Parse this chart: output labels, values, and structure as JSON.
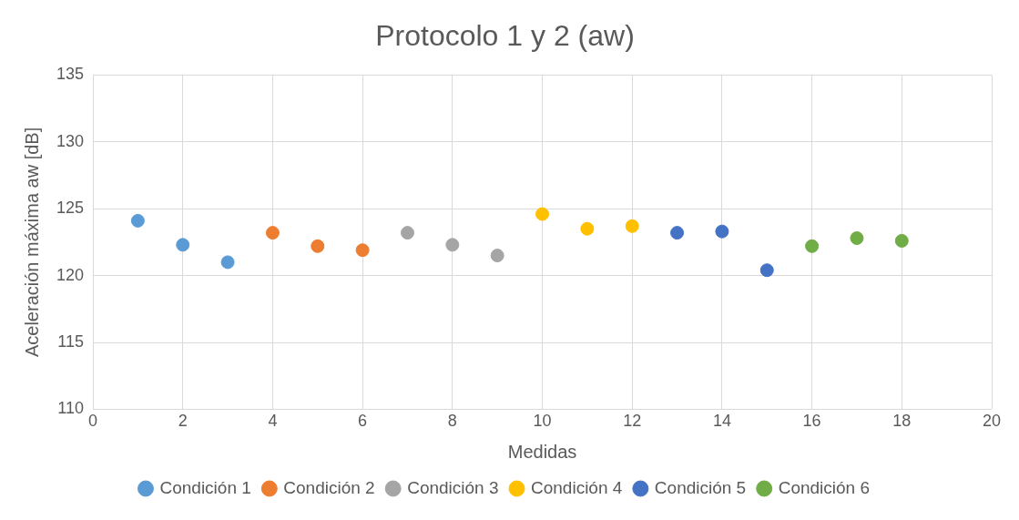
{
  "chart_data": {
    "type": "scatter",
    "title": "Protocolo 1 y 2 (aw)",
    "xlabel": "Medidas",
    "ylabel": "Aceleración máxima aw [dB]",
    "xlim": [
      0,
      20
    ],
    "xticks": [
      0,
      2,
      4,
      6,
      8,
      10,
      12,
      14,
      16,
      18,
      20
    ],
    "ylim": [
      110,
      135
    ],
    "yticks": [
      110,
      115,
      120,
      125,
      130,
      135
    ],
    "grid": true,
    "legend": "bottom",
    "marker": "circle",
    "series": [
      {
        "name": "Condición 1",
        "color": "#5b9bd5",
        "x": [
          1,
          2,
          3
        ],
        "values": [
          124.1,
          122.3,
          121.0
        ]
      },
      {
        "name": "Condición 2",
        "color": "#ed7d31",
        "x": [
          4,
          5,
          6
        ],
        "values": [
          123.2,
          122.2,
          121.9
        ]
      },
      {
        "name": "Condición 3",
        "color": "#a5a5a5",
        "x": [
          7,
          8,
          9
        ],
        "values": [
          123.2,
          122.3,
          121.5
        ]
      },
      {
        "name": "Condición 4",
        "color": "#ffc000",
        "x": [
          10,
          11,
          12
        ],
        "values": [
          124.6,
          123.5,
          123.7
        ]
      },
      {
        "name": "Condición 5",
        "color": "#4472c4",
        "x": [
          13,
          14,
          15
        ],
        "values": [
          123.2,
          123.3,
          120.4
        ]
      },
      {
        "name": "Condición 6",
        "color": "#70ad47",
        "x": [
          16,
          17,
          18
        ],
        "values": [
          122.2,
          122.8,
          122.6
        ]
      }
    ]
  }
}
